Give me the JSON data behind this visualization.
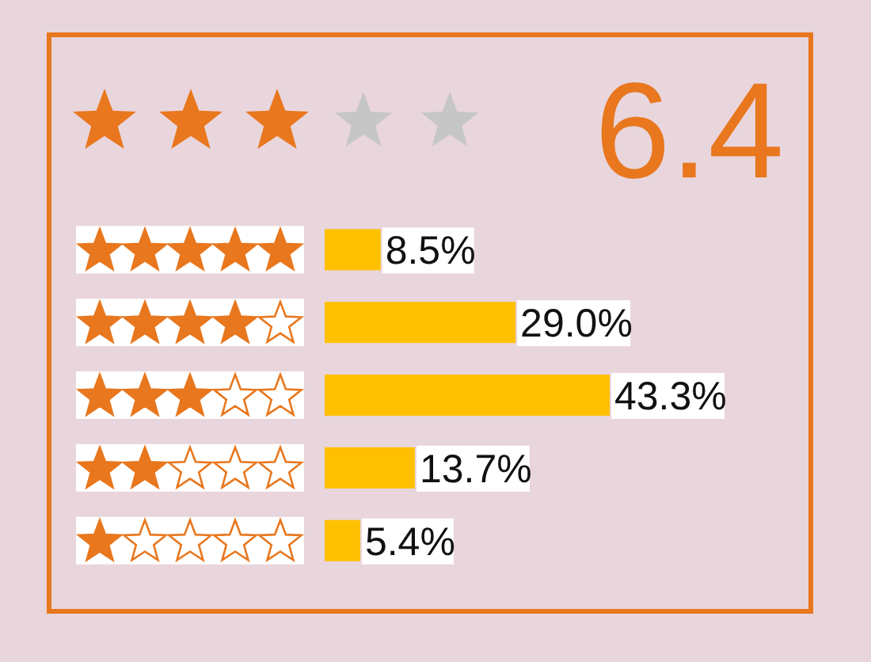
{
  "chart_data": {
    "type": "bar",
    "orientation": "horizontal",
    "categories": [
      null,
      null,
      null,
      null,
      null
    ],
    "values": [
      8.5,
      29.0,
      43.3,
      13.7,
      5.4
    ],
    "value_labels": [
      "8.5%",
      "29.0%",
      "43.3%",
      "13.7%",
      "5.4%"
    ],
    "color": "#ffc000",
    "annotations": [
      "6.4"
    ]
  }
}
